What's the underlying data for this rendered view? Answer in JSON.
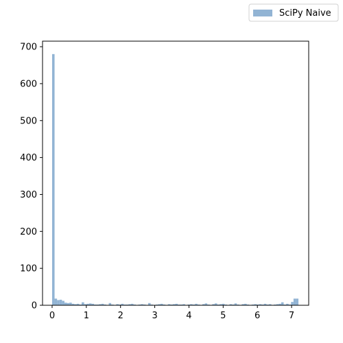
{
  "chart_data": {
    "type": "bar",
    "title": "",
    "xlabel": "",
    "ylabel": "",
    "xlim": [
      -0.28,
      7.5
    ],
    "ylim": [
      0,
      715
    ],
    "x_ticks": [
      0,
      1,
      2,
      3,
      4,
      5,
      6,
      7
    ],
    "y_ticks": [
      0,
      100,
      200,
      300,
      400,
      500,
      600,
      700
    ],
    "grid": false,
    "legend_position": "top-right, outside plot",
    "bar_color": "#92b4d4",
    "series": [
      {
        "name": "SciPy Naive",
        "bin_width": 0.072,
        "bin_starts": [
          0.0,
          0.072,
          0.144,
          0.216,
          0.288,
          0.36,
          0.432,
          0.504,
          0.576,
          0.648,
          0.72,
          0.792,
          0.864,
          0.936,
          1.008,
          1.08,
          1.152,
          1.224,
          1.296,
          1.368,
          1.44,
          1.512,
          1.584,
          1.656,
          1.728,
          1.8,
          1.872,
          1.944,
          2.016,
          2.088,
          2.16,
          2.232,
          2.304,
          2.376,
          2.448,
          2.52,
          2.592,
          2.664,
          2.736,
          2.808,
          2.88,
          2.952,
          3.024,
          3.096,
          3.168,
          3.24,
          3.312,
          3.384,
          3.456,
          3.528,
          3.6,
          3.672,
          3.744,
          3.816,
          3.888,
          3.96,
          4.032,
          4.104,
          4.176,
          4.248,
          4.32,
          4.392,
          4.464,
          4.536,
          4.608,
          4.68,
          4.752,
          4.824,
          4.896,
          4.968,
          5.04,
          5.112,
          5.184,
          5.256,
          5.328,
          5.4,
          5.472,
          5.544,
          5.616,
          5.688,
          5.76,
          5.832,
          5.904,
          5.976,
          6.048,
          6.12,
          6.192,
          6.264,
          6.336,
          6.408,
          6.48,
          6.552,
          6.624,
          6.696,
          6.768,
          6.84,
          6.912,
          6.984,
          7.056,
          7.128
        ],
        "counts": [
          680,
          18,
          14,
          15,
          12,
          7,
          6,
          7,
          4,
          3,
          4,
          2,
          8,
          3,
          4,
          5,
          4,
          2,
          2,
          3,
          4,
          2,
          1,
          6,
          2,
          1,
          3,
          2,
          4,
          2,
          2,
          3,
          4,
          2,
          1,
          2,
          3,
          2,
          1,
          6,
          2,
          1,
          2,
          3,
          4,
          2,
          1,
          3,
          2,
          3,
          4,
          2,
          2,
          3,
          1,
          2,
          3,
          2,
          4,
          2,
          1,
          3,
          5,
          2,
          1,
          3,
          5,
          2,
          3,
          4,
          2,
          1,
          3,
          2,
          5,
          2,
          1,
          3,
          4,
          2,
          1,
          2,
          3,
          2,
          3,
          2,
          4,
          2,
          3,
          1,
          2,
          3,
          4,
          8,
          2,
          4,
          2,
          9,
          18,
          18
        ]
      }
    ]
  }
}
